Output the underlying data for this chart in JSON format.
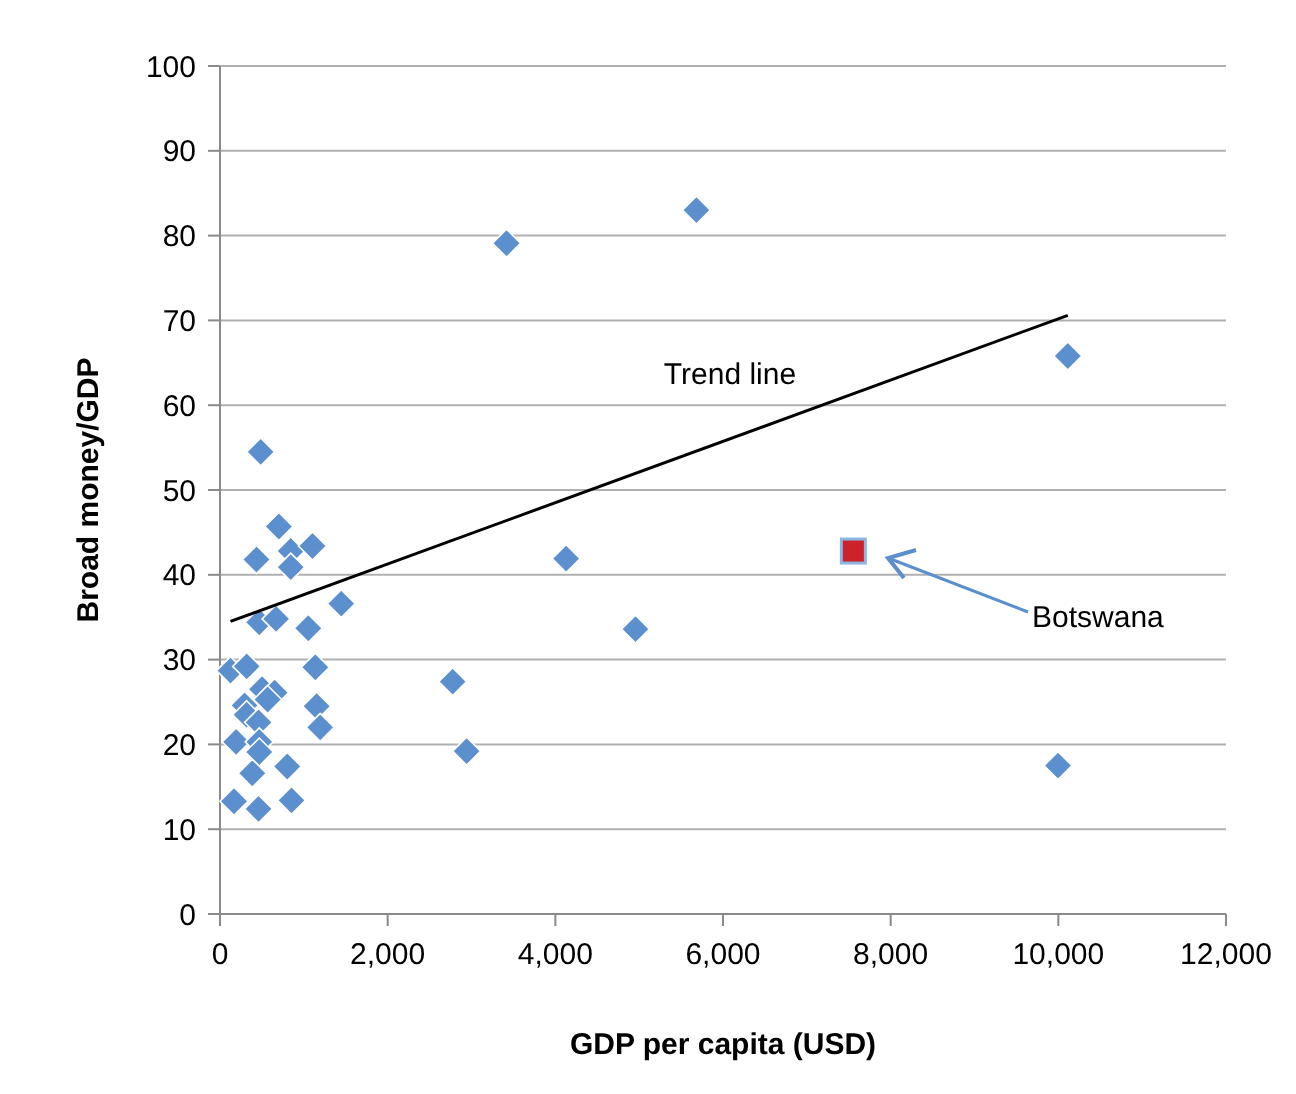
{
  "chart_data": {
    "type": "scatter",
    "xlabel": "GDP per capita (USD)",
    "ylabel": "Broad money/GDP",
    "xlim": [
      0,
      12000
    ],
    "ylim": [
      0,
      100
    ],
    "xticks": [
      0,
      {
        "value": 2000,
        "label": "2,000"
      },
      {
        "value": 4000,
        "label": "4,000"
      },
      {
        "value": 6000,
        "label": "6,000"
      },
      {
        "value": 8000,
        "label": "8,000"
      },
      {
        "value": 10000,
        "label": "10,000"
      },
      {
        "value": 12000,
        "label": "12,000"
      }
    ],
    "yticks": [
      0,
      10,
      20,
      30,
      40,
      50,
      60,
      70,
      80,
      90,
      100
    ],
    "grid": "y",
    "series": [
      {
        "marker": "diamond",
        "color": "#5b8fce",
        "x": [
          3418,
          5683,
          10113,
          4129,
          4956,
          9996,
          2775,
          2942,
          485,
          702,
          435,
          844,
          1103,
          844,
          1446,
          468,
          669,
          1053,
          125,
          318,
          1137,
          502,
          652,
          568,
          293,
          318,
          460,
          1153,
          1195,
          192,
          468,
          468,
          385,
          802,
          167,
          460,
          853
        ],
        "values": [
          79.1,
          83.0,
          65.8,
          41.9,
          33.6,
          17.5,
          27.4,
          19.2,
          54.5,
          45.7,
          41.8,
          42.8,
          43.4,
          40.9,
          36.6,
          34.4,
          34.8,
          33.7,
          28.7,
          29.2,
          29.1,
          26.5,
          26.1,
          25.3,
          24.6,
          23.5,
          22.6,
          24.5,
          22.0,
          20.3,
          20.3,
          19.1,
          16.6,
          17.4,
          13.3,
          12.4,
          13.4
        ]
      },
      {
        "type": "scatter",
        "marker": "square",
        "color": "#cc2229",
        "x": [
          7555
        ],
        "values": [
          42.8
        ]
      },
      {
        "type": "line",
        "marker": "none",
        "line_style": "solid",
        "color": "#000000",
        "x": [
          125,
          10113
        ],
        "values": [
          34.5,
          70.6
        ]
      }
    ],
    "annotations": [
      "Trend line",
      "Botswana"
    ]
  }
}
